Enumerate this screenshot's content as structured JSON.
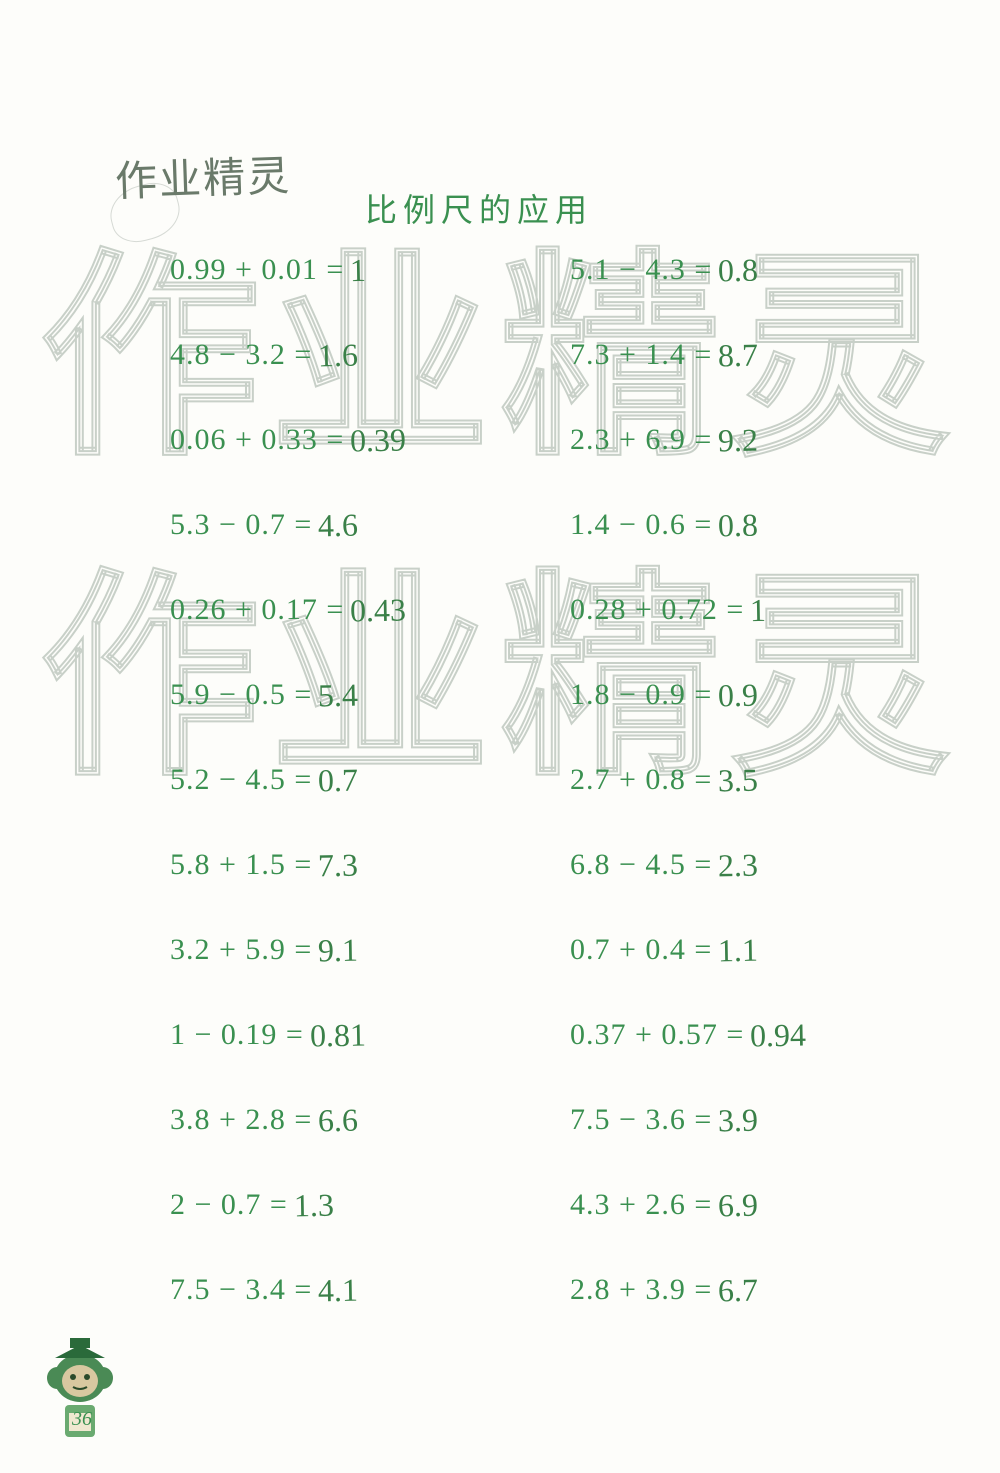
{
  "brand": "作业精灵",
  "section_title": "比例尺的应用",
  "page_number": "36",
  "watermark_text": "作业精灵",
  "colors": {
    "printed_text": "#3a9050",
    "handwritten_answer": "#3a8048",
    "watermark_stroke": "#c8d0c8",
    "background": "#fdfdfa",
    "brand_text": "#6a7a6a"
  },
  "typography": {
    "expr_fontsize": 30,
    "ans_fontsize": 32,
    "title_fontsize": 32,
    "brand_fontsize": 42,
    "watermark_fontsize": 220
  },
  "problems": [
    {
      "left": {
        "expr": "0.99 + 0.01 =",
        "ans": "1"
      },
      "right": {
        "expr": "5.1 − 4.3 =",
        "ans": "0.8"
      }
    },
    {
      "left": {
        "expr": "4.8 − 3.2 =",
        "ans": "1.6"
      },
      "right": {
        "expr": "7.3 + 1.4 =",
        "ans": "8.7"
      }
    },
    {
      "left": {
        "expr": "0.06 + 0.33 =",
        "ans": "0.39"
      },
      "right": {
        "expr": "2.3 + 6.9 =",
        "ans": "9.2"
      }
    },
    {
      "left": {
        "expr": "5.3 − 0.7 =",
        "ans": "4.6"
      },
      "right": {
        "expr": "1.4 − 0.6 =",
        "ans": "0.8"
      }
    },
    {
      "left": {
        "expr": "0.26 + 0.17 =",
        "ans": "0.43"
      },
      "right": {
        "expr": "0.28 + 0.72 =",
        "ans": "1"
      }
    },
    {
      "left": {
        "expr": "5.9 − 0.5 =",
        "ans": "5.4"
      },
      "right": {
        "expr": "1.8 − 0.9 =",
        "ans": "0.9"
      }
    },
    {
      "left": {
        "expr": "5.2 − 4.5 =",
        "ans": "0.7"
      },
      "right": {
        "expr": "2.7 + 0.8 =",
        "ans": "3.5"
      }
    },
    {
      "left": {
        "expr": "5.8 + 1.5 =",
        "ans": "7.3"
      },
      "right": {
        "expr": "6.8 − 4.5 =",
        "ans": "2.3"
      }
    },
    {
      "left": {
        "expr": "3.2 + 5.9 =",
        "ans": "9.1"
      },
      "right": {
        "expr": "0.7 + 0.4 =",
        "ans": "1.1"
      }
    },
    {
      "left": {
        "expr": "1 − 0.19 =",
        "ans": "0.81"
      },
      "right": {
        "expr": "0.37 + 0.57 =",
        "ans": "0.94"
      }
    },
    {
      "left": {
        "expr": "3.8 + 2.8 =",
        "ans": "6.6"
      },
      "right": {
        "expr": "7.5 − 3.6 =",
        "ans": "3.9"
      }
    },
    {
      "left": {
        "expr": "2 − 0.7 =",
        "ans": "1.3"
      },
      "right": {
        "expr": "4.3 + 2.6 =",
        "ans": "6.9"
      }
    },
    {
      "left": {
        "expr": "7.5 − 3.4 =",
        "ans": "4.1"
      },
      "right": {
        "expr": "2.8 + 3.9 =",
        "ans": "6.7"
      }
    }
  ]
}
